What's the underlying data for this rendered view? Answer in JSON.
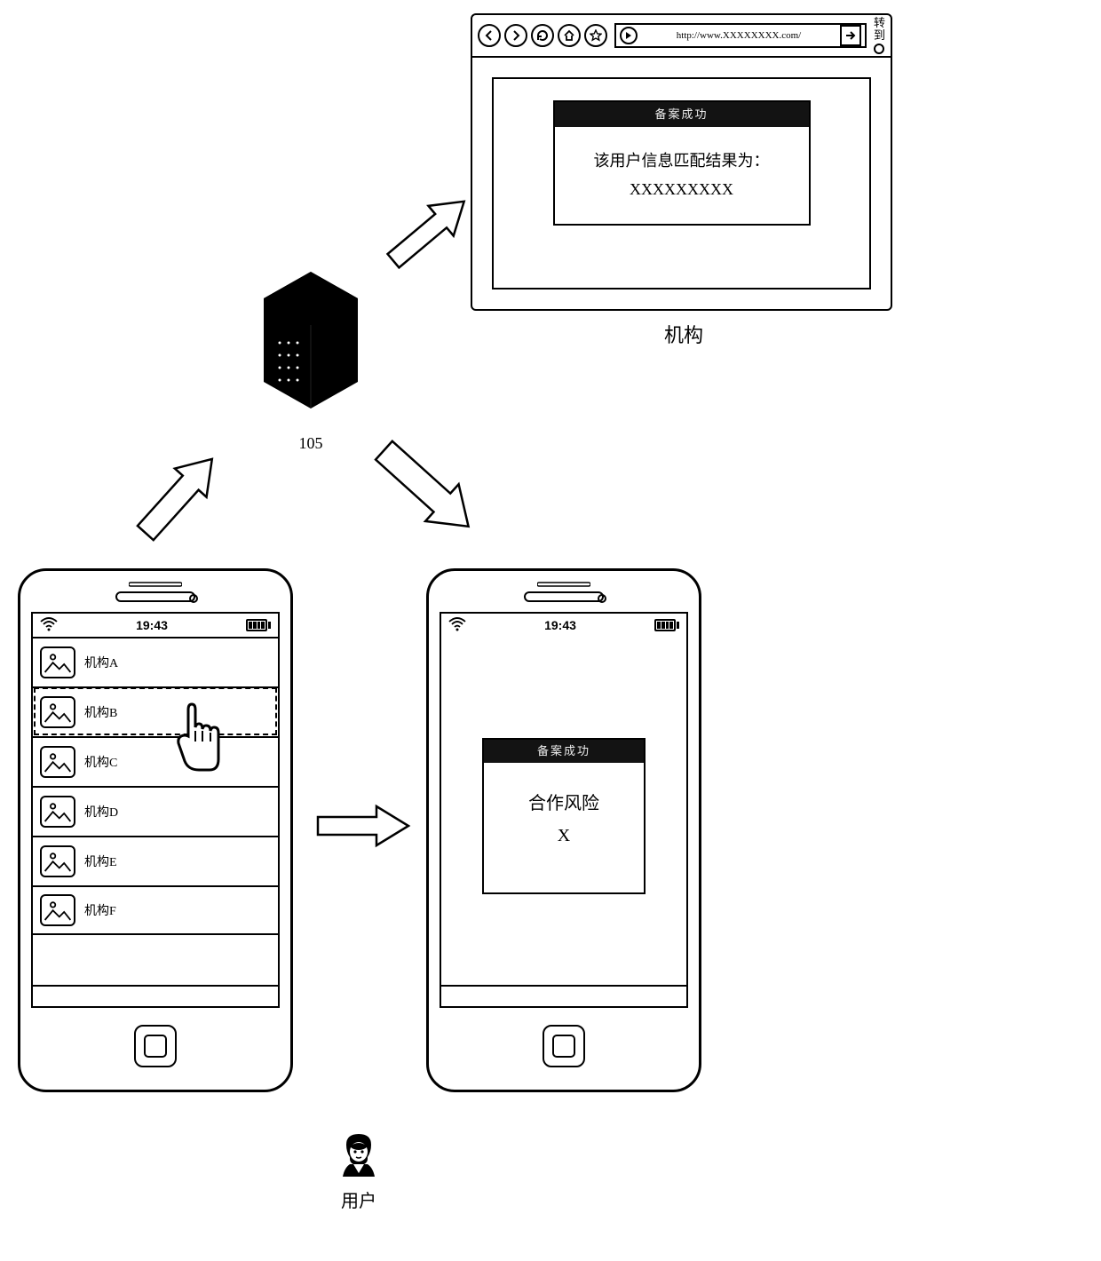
{
  "browser": {
    "url": "http://www.XXXXXXXX.com/",
    "go_label": "转\n到",
    "result_header": "备案成功",
    "result_line1": "该用户信息匹配结果为：",
    "result_line2": "XXXXXXXXX",
    "org_label": "机构"
  },
  "server": {
    "label": "105"
  },
  "phone_status": {
    "time": "19:43"
  },
  "phone1": {
    "items": [
      {
        "label": "机构A"
      },
      {
        "label": "机构B"
      },
      {
        "label": "机构C"
      },
      {
        "label": "机构D"
      },
      {
        "label": "机构E"
      },
      {
        "label": "机构F"
      }
    ],
    "selected_index": 1
  },
  "phone2": {
    "card_header": "备案成功",
    "line1": "合作风险",
    "line2": "X"
  },
  "user": {
    "label": "用户"
  },
  "colors": {
    "stroke": "#000000",
    "bg": "#ffffff",
    "server_fill": "#000000"
  }
}
